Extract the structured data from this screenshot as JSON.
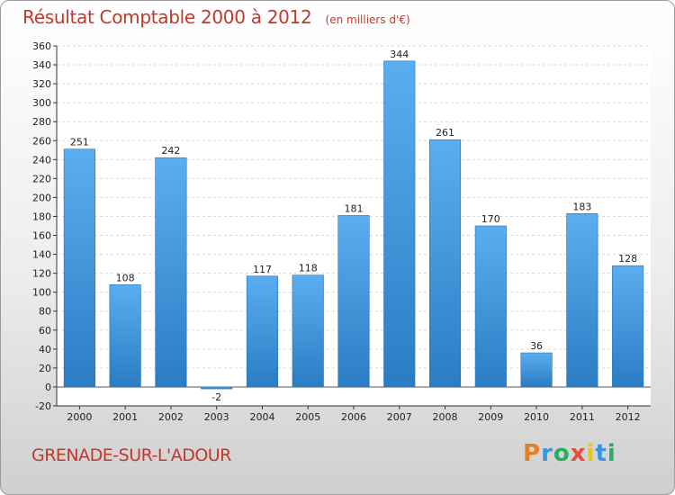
{
  "header": {
    "title": "Résultat Comptable 2000 à 2012",
    "unit": "(en milliers d'€)"
  },
  "footer": {
    "place": "GRENADE-SUR-L'ADOUR",
    "logo": "Proxiti"
  },
  "colors": {
    "title": "#c0392b",
    "bar_top": "#5aaef0",
    "bar_bottom": "#2a7dc3",
    "logo_letters": [
      "#e67e22",
      "#3498db",
      "#27ae60",
      "#e74c3c",
      "#f1c40f",
      "#3498db",
      "#27ae60"
    ]
  },
  "chart_data": {
    "type": "bar",
    "title": "Résultat Comptable 2000 à 2012",
    "xlabel": "",
    "ylabel": "",
    "categories": [
      "2000",
      "2001",
      "2002",
      "2003",
      "2004",
      "2005",
      "2006",
      "2007",
      "2008",
      "2009",
      "2010",
      "2011",
      "2012"
    ],
    "values": [
      251,
      108,
      242,
      -2,
      117,
      118,
      181,
      344,
      261,
      170,
      36,
      183,
      128
    ],
    "ylim": [
      -20,
      360
    ],
    "yticks": [
      -20,
      0,
      20,
      40,
      60,
      80,
      100,
      120,
      140,
      160,
      180,
      200,
      220,
      240,
      260,
      280,
      300,
      320,
      340,
      360
    ],
    "grid": true
  }
}
